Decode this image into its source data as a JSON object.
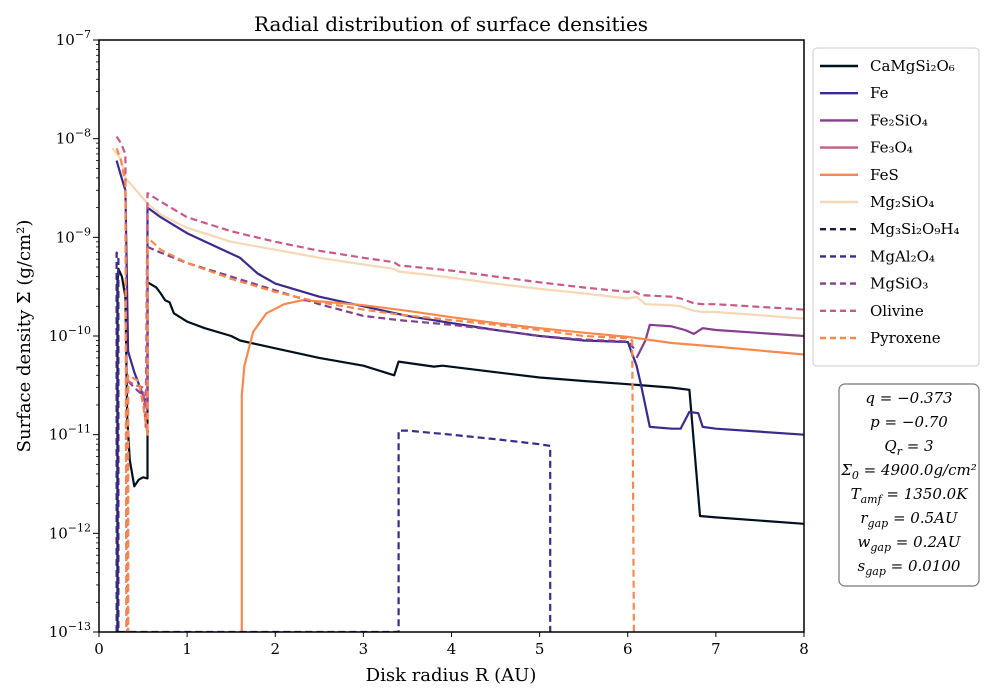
{
  "chart_data": {
    "type": "line",
    "title": "Radial distribution of surface densities",
    "xlabel": "Disk radius R (AU)",
    "ylabel": "Surface density Σ (g/cm²)",
    "x_scale": "linear",
    "y_scale": "log",
    "xlim": [
      0,
      8
    ],
    "ylim": [
      1e-13,
      1e-07
    ],
    "x_ticks": [
      "0",
      "1",
      "2",
      "3",
      "4",
      "5",
      "6",
      "7",
      "8"
    ],
    "y_ticks": [
      {
        "base": "10",
        "exp": "−13"
      },
      {
        "base": "10",
        "exp": "−12"
      },
      {
        "base": "10",
        "exp": "−11"
      },
      {
        "base": "10",
        "exp": "−10"
      },
      {
        "base": "10",
        "exp": "−9"
      },
      {
        "base": "10",
        "exp": "−8"
      },
      {
        "base": "10",
        "exp": "−7"
      }
    ],
    "legend_position": "outside right, top",
    "series": [
      {
        "name": "CaMgSi₂O₆",
        "color": "#00111c",
        "style": "solid",
        "points": [
          [
            0.21,
            1e-13
          ],
          [
            0.21,
            3.5e-10
          ],
          [
            0.22,
            4.8e-10
          ],
          [
            0.26,
            4e-10
          ],
          [
            0.3,
            2.5e-10
          ],
          [
            0.32,
            1.5e-11
          ],
          [
            0.35,
            5.5e-12
          ],
          [
            0.4,
            3e-12
          ],
          [
            0.45,
            3.5e-12
          ],
          [
            0.5,
            3.7e-12
          ],
          [
            0.55,
            3.6e-12
          ],
          [
            0.55,
            3.5e-10
          ],
          [
            0.6,
            3.3e-10
          ],
          [
            0.65,
            3.1e-10
          ],
          [
            0.7,
            2.7e-10
          ],
          [
            0.75,
            2.3e-10
          ],
          [
            0.8,
            2.2e-10
          ],
          [
            0.85,
            1.7e-10
          ],
          [
            1.0,
            1.4e-10
          ],
          [
            1.2,
            1.2e-10
          ],
          [
            1.5,
            1e-10
          ],
          [
            1.6,
            9e-11
          ],
          [
            2.0,
            7.5e-11
          ],
          [
            2.5,
            6e-11
          ],
          [
            3.0,
            5e-11
          ],
          [
            3.35,
            4e-11
          ],
          [
            3.4,
            5.5e-11
          ],
          [
            3.8,
            4.9e-11
          ],
          [
            3.9,
            5e-11
          ],
          [
            4.5,
            4.3e-11
          ],
          [
            5.0,
            3.8e-11
          ],
          [
            5.5,
            3.5e-11
          ],
          [
            6.0,
            3.25e-11
          ],
          [
            6.5,
            3e-11
          ],
          [
            6.7,
            2.85e-11
          ],
          [
            6.82,
            1.5e-12
          ],
          [
            7.0,
            1.45e-12
          ],
          [
            8.0,
            1.25e-12
          ]
        ]
      },
      {
        "name": "Fe",
        "color": "#3b2a8c",
        "style": "solid",
        "points": [
          [
            0.2,
            6e-09
          ],
          [
            0.25,
            4.2e-09
          ],
          [
            0.3,
            3e-09
          ],
          [
            0.33,
            7e-11
          ],
          [
            0.4,
            4.3e-11
          ],
          [
            0.5,
            2.5e-11
          ],
          [
            0.55,
            2e-11
          ],
          [
            0.55,
            2e-09
          ],
          [
            0.7,
            1.6e-09
          ],
          [
            1.0,
            1.1e-09
          ],
          [
            1.6,
            6.2e-10
          ],
          [
            1.8,
            4.3e-10
          ],
          [
            2.0,
            3.4e-10
          ],
          [
            2.5,
            2.5e-10
          ],
          [
            3.0,
            2e-10
          ],
          [
            3.5,
            1.6e-10
          ],
          [
            4.0,
            1.35e-10
          ],
          [
            4.5,
            1.15e-10
          ],
          [
            5.0,
            1e-10
          ],
          [
            5.5,
            9e-11
          ],
          [
            6.0,
            8.7e-11
          ],
          [
            6.1,
            5e-11
          ],
          [
            6.15,
            3.2e-11
          ],
          [
            6.25,
            1.2e-11
          ],
          [
            6.5,
            1.15e-11
          ],
          [
            6.6,
            1.15e-11
          ],
          [
            6.7,
            1.7e-11
          ],
          [
            6.8,
            1.65e-11
          ],
          [
            6.85,
            1.2e-11
          ],
          [
            7.0,
            1.15e-11
          ],
          [
            8.0,
            1e-11
          ]
        ]
      },
      {
        "name": "Fe₂SiO₄",
        "color": "#833f8e",
        "style": "solid",
        "points": [
          [
            6.1,
            6e-11
          ],
          [
            6.2,
            9e-11
          ],
          [
            6.25,
            1.3e-10
          ],
          [
            6.5,
            1.25e-10
          ],
          [
            6.65,
            1.15e-10
          ],
          [
            6.75,
            1.05e-10
          ],
          [
            6.85,
            1.2e-10
          ],
          [
            7.0,
            1.15e-10
          ],
          [
            8.0,
            1e-10
          ]
        ]
      },
      {
        "name": "Fe₃O₄",
        "color": "#c85a84",
        "style": "solid",
        "points": []
      },
      {
        "name": "FeS",
        "color": "#f7894e",
        "style": "solid",
        "points": [
          [
            1.62,
            1e-13
          ],
          [
            1.62,
            2.5e-11
          ],
          [
            1.65,
            5e-11
          ],
          [
            1.75,
            1.1e-10
          ],
          [
            1.9,
            1.7e-10
          ],
          [
            2.1,
            2.1e-10
          ],
          [
            2.3,
            2.3e-10
          ],
          [
            2.5,
            2.25e-10
          ],
          [
            3.0,
            2.05e-10
          ],
          [
            3.5,
            1.8e-10
          ],
          [
            4.0,
            1.55e-10
          ],
          [
            4.5,
            1.35e-10
          ],
          [
            5.0,
            1.2e-10
          ],
          [
            5.5,
            1.08e-10
          ],
          [
            6.0,
            9.8e-11
          ],
          [
            6.5,
            8.5e-11
          ],
          [
            7.0,
            7.8e-11
          ],
          [
            8.0,
            6.5e-11
          ]
        ]
      },
      {
        "name": "Mg₂SiO₄",
        "color": "#f6d8b5",
        "style": "solid",
        "points": [
          [
            0.15,
            8e-09
          ],
          [
            0.25,
            6.2e-09
          ],
          [
            0.3,
            4e-09
          ],
          [
            0.55,
            2.2e-09
          ],
          [
            0.7,
            1.7e-09
          ],
          [
            1.0,
            1.25e-09
          ],
          [
            1.5,
            9e-10
          ],
          [
            2.0,
            7.5e-10
          ],
          [
            2.5,
            6.2e-10
          ],
          [
            3.0,
            5.3e-10
          ],
          [
            3.35,
            4.8e-10
          ],
          [
            3.4,
            4.5e-10
          ],
          [
            3.8,
            4.1e-10
          ],
          [
            4.0,
            3.9e-10
          ],
          [
            4.5,
            3.4e-10
          ],
          [
            5.0,
            3e-10
          ],
          [
            5.5,
            2.7e-10
          ],
          [
            6.0,
            2.4e-10
          ],
          [
            6.1,
            2.5e-10
          ],
          [
            6.2,
            2.1e-10
          ],
          [
            6.5,
            2.05e-10
          ],
          [
            6.6,
            2e-10
          ],
          [
            6.75,
            1.8e-10
          ],
          [
            6.85,
            1.75e-10
          ],
          [
            7.0,
            1.75e-10
          ],
          [
            8.0,
            1.5e-10
          ]
        ]
      },
      {
        "name": "Mg₃Si₂O₉H₄",
        "color": "#1e1536",
        "style": "dashed",
        "points": []
      },
      {
        "name": "MgAl₂O₄",
        "color": "#3b2a8c",
        "style": "dashed",
        "points": [
          [
            0.2,
            1e-13
          ],
          [
            0.2,
            7e-10
          ],
          [
            0.22,
            6e-10
          ],
          [
            0.22,
            1e-13
          ],
          [
            3.4,
            1e-13
          ],
          [
            3.4,
            1.1e-11
          ],
          [
            3.5,
            1.1e-11
          ],
          [
            4.0,
            1e-11
          ],
          [
            4.5,
            9e-12
          ],
          [
            5.0,
            8e-12
          ],
          [
            5.12,
            7.7e-12
          ],
          [
            5.12,
            1e-13
          ]
        ]
      },
      {
        "name": "MgSiO₃",
        "color": "#833f8e",
        "style": "dashed",
        "points": [
          [
            0.33,
            3.5e-11
          ],
          [
            0.4,
            3e-11
          ],
          [
            0.5,
            2.5e-11
          ],
          [
            0.55,
            1.8e-11
          ],
          [
            0.55,
            8e-10
          ],
          [
            0.7,
            7e-10
          ],
          [
            1.0,
            5.5e-10
          ],
          [
            1.5,
            4e-10
          ],
          [
            2.0,
            2.9e-10
          ],
          [
            2.5,
            2.1e-10
          ],
          [
            3.0,
            1.6e-10
          ],
          [
            3.4,
            1.45e-10
          ],
          [
            4.0,
            1.3e-10
          ],
          [
            4.5,
            1.15e-10
          ],
          [
            5.0,
            1e-10
          ],
          [
            5.5,
            9.2e-11
          ],
          [
            6.0,
            8.8e-11
          ],
          [
            6.1,
            7e-11
          ]
        ]
      },
      {
        "name": "Olivine",
        "color": "#c85a84",
        "style": "dashed",
        "points": [
          [
            0.2,
            1.05e-08
          ],
          [
            0.25,
            9e-09
          ],
          [
            0.3,
            7e-09
          ],
          [
            0.32,
            1e-13
          ],
          [
            0.33,
            1e-13
          ],
          [
            0.33,
            3.5e-11
          ],
          [
            0.4,
            3.2e-11
          ],
          [
            0.5,
            3e-11
          ],
          [
            0.53,
            1.2e-11
          ],
          [
            0.55,
            2.8e-09
          ],
          [
            0.7,
            2.3e-09
          ],
          [
            1.0,
            1.6e-09
          ],
          [
            1.5,
            1.15e-09
          ],
          [
            2.0,
            9e-10
          ],
          [
            2.5,
            7.3e-10
          ],
          [
            3.0,
            6.2e-10
          ],
          [
            3.35,
            5.6e-10
          ],
          [
            3.4,
            5.2e-10
          ],
          [
            4.0,
            4.6e-10
          ],
          [
            4.5,
            4e-10
          ],
          [
            5.0,
            3.5e-10
          ],
          [
            5.5,
            3.1e-10
          ],
          [
            6.0,
            2.8e-10
          ],
          [
            6.05,
            2.9e-10
          ],
          [
            6.15,
            2.6e-10
          ],
          [
            6.5,
            2.5e-10
          ],
          [
            6.6,
            2.4e-10
          ],
          [
            6.75,
            2.15e-10
          ],
          [
            6.85,
            2.1e-10
          ],
          [
            7.0,
            2.1e-10
          ],
          [
            8.0,
            1.85e-10
          ]
        ]
      },
      {
        "name": "Pyroxene",
        "color": "#f7894e",
        "style": "dashed",
        "points": [
          [
            0.2,
            8e-09
          ],
          [
            0.25,
            6e-09
          ],
          [
            0.3,
            3.5e-09
          ],
          [
            0.31,
            1e-13
          ],
          [
            0.33,
            1e-13
          ],
          [
            0.33,
            4e-11
          ],
          [
            0.45,
            3.5e-11
          ],
          [
            0.5,
            2e-11
          ],
          [
            0.55,
            1e-11
          ],
          [
            0.55,
            1e-09
          ],
          [
            0.7,
            7.5e-10
          ],
          [
            1.0,
            5.5e-10
          ],
          [
            1.5,
            3.8e-10
          ],
          [
            2.0,
            2.8e-10
          ],
          [
            2.5,
            2.2e-10
          ],
          [
            3.0,
            1.85e-10
          ],
          [
            3.4,
            1.65e-10
          ],
          [
            4.0,
            1.45e-10
          ],
          [
            4.5,
            1.3e-10
          ],
          [
            5.0,
            1.15e-10
          ],
          [
            5.5,
            1e-10
          ],
          [
            6.0,
            9.5e-11
          ],
          [
            6.05,
            9e-11
          ],
          [
            6.07,
            1e-13
          ]
        ]
      }
    ]
  },
  "params": [
    {
      "lhs": "q",
      "sub": "",
      "rhs": "= −0.373"
    },
    {
      "lhs": "p",
      "sub": "",
      "rhs": "= −0.70"
    },
    {
      "lhs": "Q",
      "sub": "r",
      "rhs": "= 3"
    },
    {
      "lhs": "Σ",
      "sub": "0",
      "rhs": "= 4900.0g/cm²"
    },
    {
      "lhs": "T",
      "sub": "amf",
      "rhs": "= 1350.0K"
    },
    {
      "lhs": "r",
      "sub": "gap",
      "rhs": "= 0.5AU"
    },
    {
      "lhs": "w",
      "sub": "gap",
      "rhs": "= 0.2AU"
    },
    {
      "lhs": "s",
      "sub": "gap",
      "rhs": "= 0.0100"
    }
  ]
}
